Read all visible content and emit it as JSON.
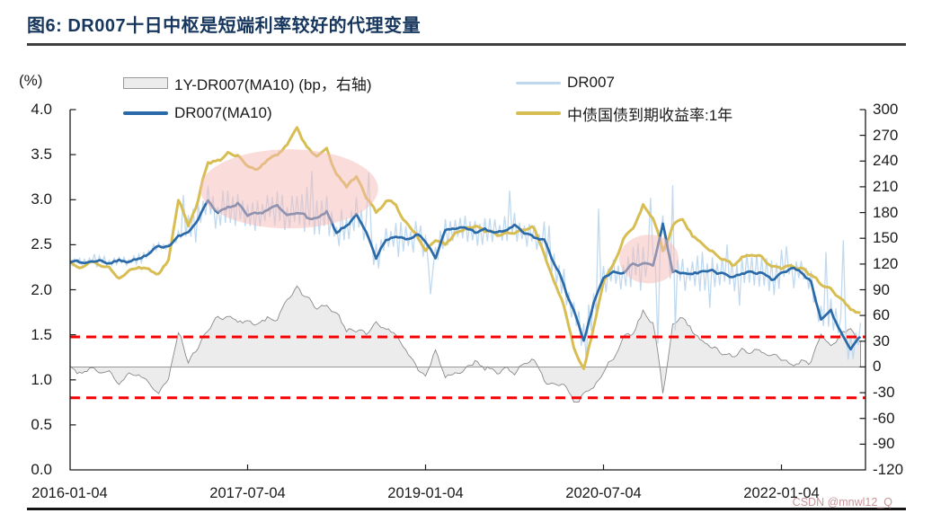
{
  "figure": {
    "title": "图6:  DR007十日中枢是短端利率较好的代理变量",
    "unit_label": "(%)",
    "watermark": "CSDN @mnwl12_Q"
  },
  "legend": [
    {
      "label": "1Y-DR007(MA10) (bp，右轴)",
      "swatch": "area",
      "color": "#ececec",
      "border_color": "#999999"
    },
    {
      "label": "DR007",
      "swatch": "line",
      "color": "#bdd7ee"
    },
    {
      "label": "DR007(MA10)",
      "swatch": "line",
      "color": "#2a6aa8"
    },
    {
      "label": "中债国债到期收益率:1年",
      "swatch": "line",
      "color": "#d7bd52"
    }
  ],
  "chart_data": {
    "type": "line",
    "title": "DR007十日中枢是短端利率较好的代理变量",
    "start_month": "2016-01",
    "frequency": "monthly",
    "x_tick_labels": [
      "2016-01-04",
      "2017-07-04",
      "2019-01-04",
      "2020-07-04",
      "2022-01-04"
    ],
    "x_tick_month_index": [
      0,
      18,
      36,
      54,
      72
    ],
    "left_axis": {
      "unit": "%",
      "min": 0,
      "max": 4,
      "tick_labels": [
        "4.0",
        "3.5",
        "3.0",
        "2.5",
        "2.0",
        "1.5",
        "1.0",
        "0.5",
        "0.0"
      ]
    },
    "right_axis": {
      "unit": "bp",
      "min": -120,
      "max": 300,
      "tick_labels": [
        "300",
        "270",
        "240",
        "210",
        "180",
        "150",
        "120",
        "90",
        "60",
        "30",
        "0",
        "-30",
        "-60",
        "-90",
        "-120"
      ]
    },
    "grid": false,
    "legend_position": "top",
    "series": [
      {
        "name": "DR007(MA10)",
        "axis": "left",
        "color": "#2a6aa8",
        "monthly": [
          2.33,
          2.3,
          2.31,
          2.33,
          2.3,
          2.32,
          2.33,
          2.34,
          2.38,
          2.48,
          2.5,
          2.6,
          2.62,
          2.8,
          3.0,
          2.85,
          2.9,
          2.95,
          2.8,
          2.85,
          2.88,
          2.92,
          2.82,
          2.88,
          2.8,
          2.78,
          2.85,
          2.62,
          2.72,
          2.82,
          2.62,
          2.35,
          2.55,
          2.6,
          2.58,
          2.62,
          2.55,
          2.35,
          2.65,
          2.68,
          2.7,
          2.62,
          2.68,
          2.62,
          2.66,
          2.7,
          2.62,
          2.58,
          2.55,
          2.3,
          2.05,
          1.75,
          1.42,
          1.85,
          2.12,
          2.2,
          2.18,
          2.28,
          2.3,
          2.25,
          2.72,
          2.18,
          2.2,
          2.18,
          2.2,
          2.22,
          2.18,
          2.15,
          2.18,
          2.2,
          2.18,
          2.12,
          2.18,
          2.25,
          2.2,
          2.1,
          1.65,
          1.78,
          1.52,
          1.35,
          1.5
        ]
      },
      {
        "name": "中债国债到期收益率:1年",
        "axis": "left",
        "color": "#d7bd52",
        "monthly": [
          2.32,
          2.28,
          2.3,
          2.28,
          2.25,
          2.12,
          2.22,
          2.28,
          2.22,
          2.18,
          2.35,
          3.02,
          2.72,
          3.0,
          3.42,
          3.45,
          3.5,
          3.48,
          3.35,
          3.32,
          3.45,
          3.52,
          3.6,
          3.79,
          3.6,
          3.48,
          3.55,
          3.3,
          3.12,
          3.25,
          3.05,
          2.88,
          2.98,
          2.92,
          2.75,
          2.62,
          2.42,
          2.55,
          2.5,
          2.62,
          2.66,
          2.72,
          2.66,
          2.62,
          2.6,
          2.64,
          2.68,
          2.68,
          2.4,
          2.1,
          1.8,
          1.35,
          1.12,
          1.6,
          2.1,
          2.3,
          2.55,
          2.65,
          2.97,
          2.8,
          2.42,
          2.7,
          2.78,
          2.6,
          2.5,
          2.42,
          2.35,
          2.28,
          2.35,
          2.4,
          2.35,
          2.28,
          2.22,
          2.28,
          2.25,
          2.18,
          2.05,
          2.02,
          1.88,
          1.78,
          1.73
        ]
      },
      {
        "name": "DR007",
        "axis": "left",
        "color": "#bdd7ee",
        "derivation": "DR007(MA10) plus daily volatility envelope",
        "volatility_by_year": [
          0.05,
          0.22,
          0.22,
          0.18,
          0.2,
          0.22,
          0.16
        ],
        "spikes": [
          {
            "m": 11.6,
            "v": 3.05
          },
          {
            "m": 24.5,
            "v": 3.32
          },
          {
            "m": 30.2,
            "v": 3.3
          },
          {
            "m": 36.5,
            "v": 1.95
          },
          {
            "m": 44.5,
            "v": 3.1
          },
          {
            "m": 53.5,
            "v": 2.9
          },
          {
            "m": 58.8,
            "v": 3.02
          },
          {
            "m": 59.6,
            "v": 1.4
          },
          {
            "m": 60.9,
            "v": 3.16
          },
          {
            "m": 61.3,
            "v": 1.55
          },
          {
            "m": 76.5,
            "v": 2.42
          },
          {
            "m": 78.3,
            "v": 2.55
          }
        ]
      },
      {
        "name": "1Y-DR007(MA10)",
        "axis": "right",
        "color": "#ececec",
        "derivation": "(中债国债到期收益率:1年 − DR007(MA10)) × 100bp"
      }
    ],
    "red_dashed_lines_bp": [
      35,
      -36
    ],
    "highlight_ellipses": [
      {
        "center_month": 22.2,
        "center_value": 3.12,
        "rx_months": 9.0,
        "ry_value": 0.44
      },
      {
        "center_month": 58.6,
        "center_value": 2.34,
        "rx_months": 3.0,
        "ry_value": 0.27
      }
    ]
  }
}
